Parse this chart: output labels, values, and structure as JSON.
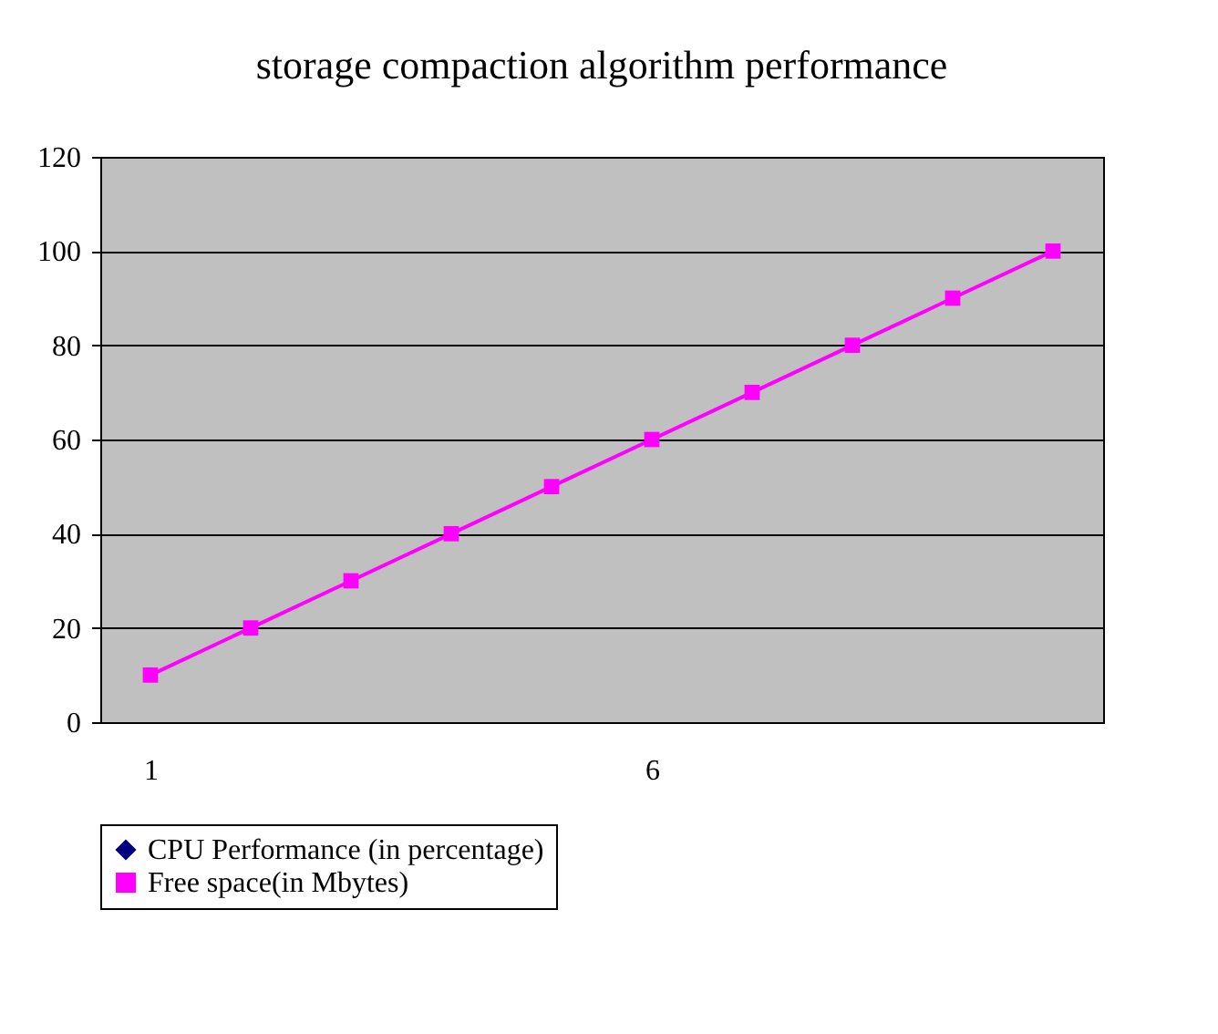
{
  "chart_data": {
    "type": "line",
    "title": "storage compaction algorithm performance",
    "categories": [
      "1",
      null,
      null,
      null,
      null,
      "6",
      null,
      null,
      null,
      null
    ],
    "series": [
      {
        "name": "CPU Performance (in percentage)",
        "color": "#000080",
        "marker": "diamond",
        "values": [
          null,
          null,
          null,
          null,
          null,
          null,
          null,
          null,
          null,
          null
        ]
      },
      {
        "name": "Free space(in Mbytes)",
        "color": "#ff00ff",
        "marker": "square",
        "values": [
          10,
          20,
          30,
          40,
          50,
          60,
          70,
          80,
          90,
          100
        ]
      }
    ],
    "ylim": [
      0,
      120
    ],
    "yticks": [
      0,
      20,
      40,
      60,
      80,
      100,
      120
    ],
    "grid": "y",
    "legend": "bottom",
    "line_style": "solid"
  }
}
